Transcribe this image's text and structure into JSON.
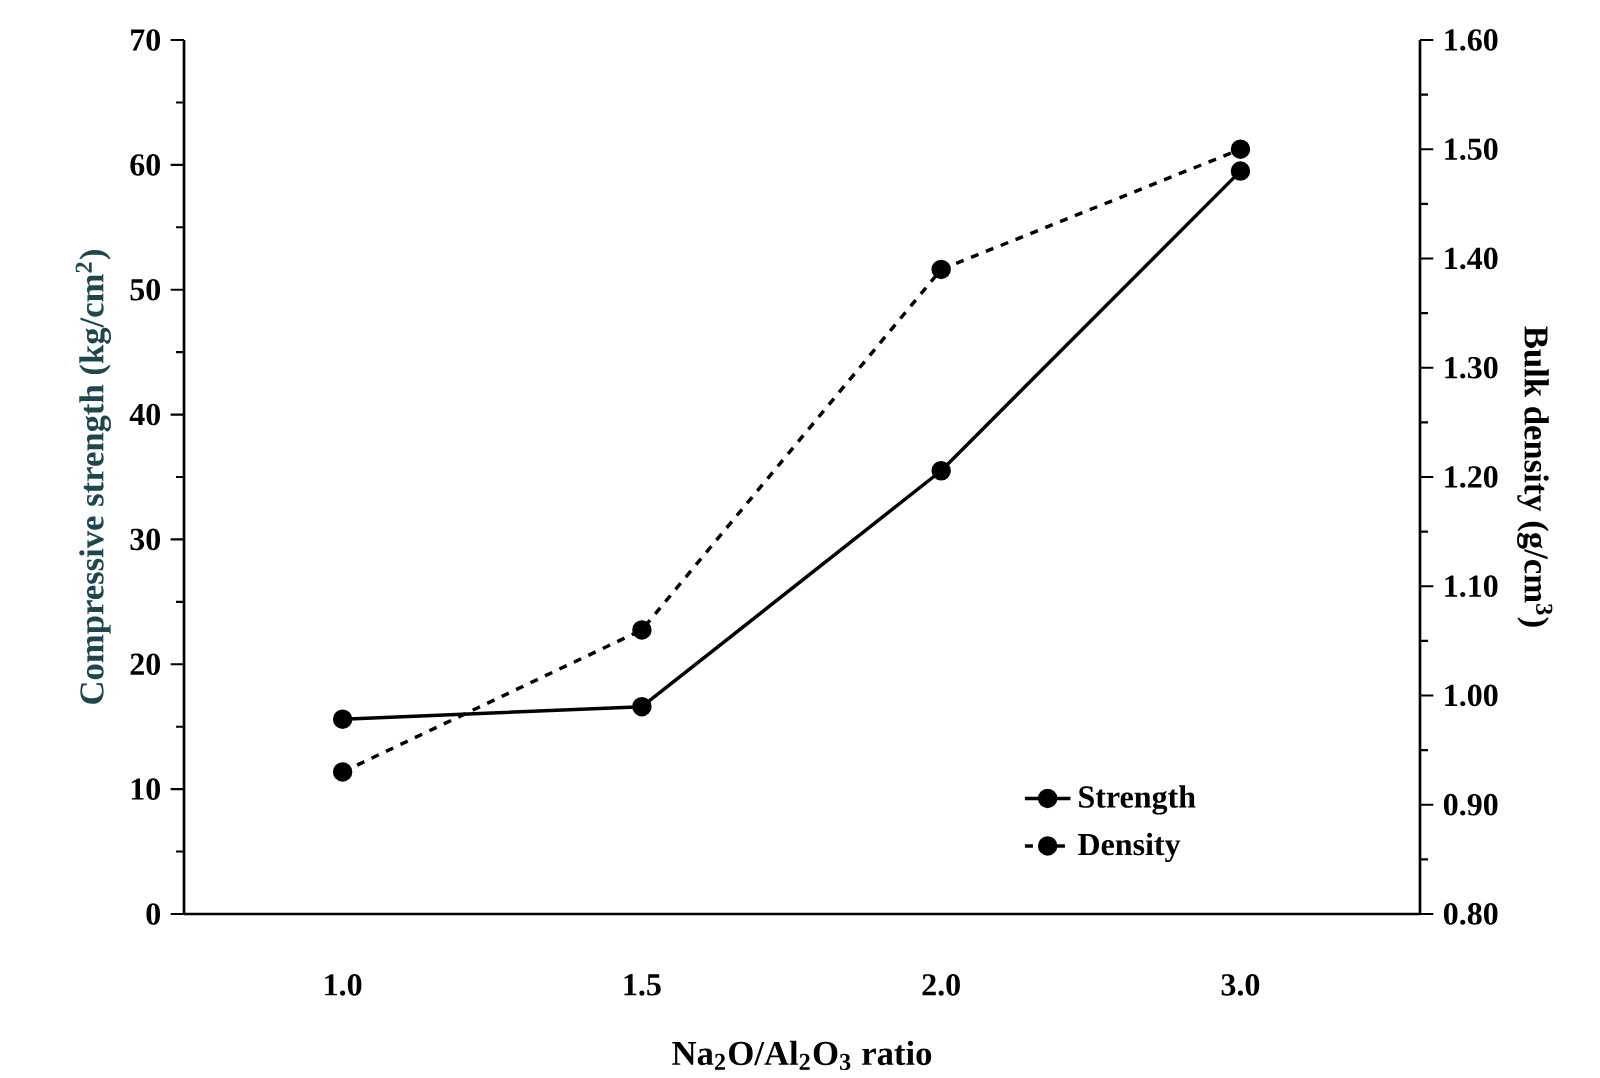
{
  "chart_data": {
    "type": "line",
    "xlabel": "Na$_{2}$O/Al$_{2}$O$_{3}$ ratio",
    "ylabel": "Compressive strength (kg/cm$^{2}$)",
    "y2label": "Bulk density (g/cm$^{3}$)",
    "categories": [
      "1.0",
      "1.5",
      "2.0",
      "3.0"
    ],
    "series": [
      {
        "name": "Strength",
        "color": "#000000",
        "line_style": "solid",
        "axis": "y",
        "values": [
          15.6,
          16.6,
          35.5,
          59.5
        ]
      },
      {
        "name": "Density",
        "color": "#000000",
        "line_style": "dashed",
        "axis": "y2",
        "values": [
          0.93,
          1.06,
          1.39,
          1.5
        ]
      }
    ],
    "ylim": [
      0,
      70
    ],
    "yticks": [
      0,
      10,
      20,
      30,
      40,
      50,
      60,
      70
    ],
    "y2lim": [
      0.8,
      1.6
    ],
    "y2ticks": [
      {
        "value": 0.8,
        "label": "0.80"
      },
      {
        "value": 0.9,
        "label": "0.90"
      },
      {
        "value": 1.0,
        "label": "1.00"
      },
      {
        "value": 1.1,
        "label": "1.10"
      },
      {
        "value": 1.2,
        "label": "1.20"
      },
      {
        "value": 1.3,
        "label": "1.30"
      },
      {
        "value": 1.4,
        "label": "1.40"
      },
      {
        "value": 1.5,
        "label": "1.50"
      },
      {
        "value": 1.6,
        "label": "1.60"
      }
    ],
    "marker": "circle",
    "legend": "bottom right",
    "grid": false
  }
}
